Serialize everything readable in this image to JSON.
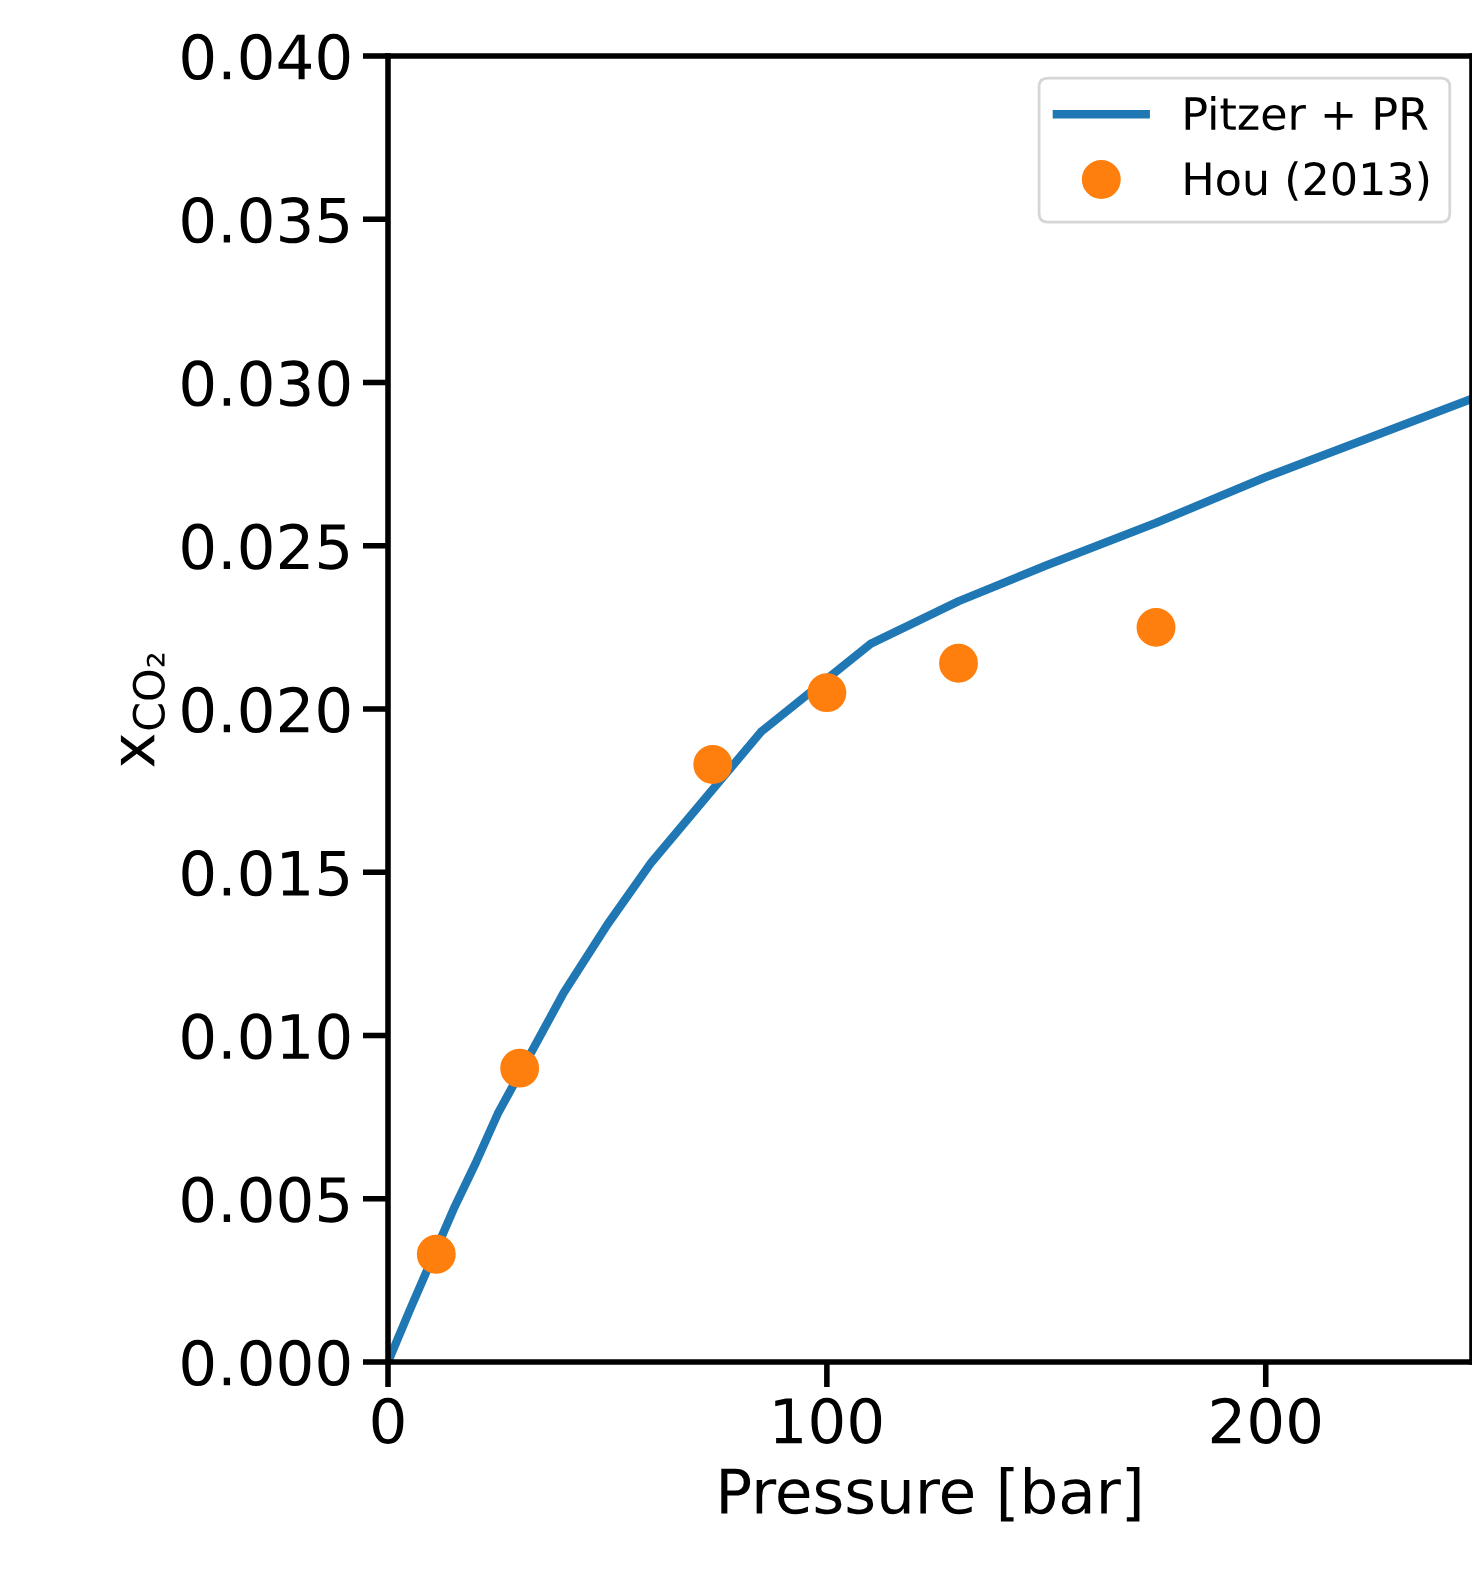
{
  "chart_data": {
    "type": "line",
    "xlabel": "Pressure [bar]",
    "ylabel": "x$_{CO₂}$",
    "xlim": [
      0,
      247
    ],
    "ylim": [
      0,
      0.04
    ],
    "xticks": [
      0,
      100,
      200
    ],
    "yticks": [
      {
        "value": 0,
        "label": "0.000"
      },
      {
        "value": 0.005,
        "label": "0.005"
      },
      {
        "value": 0.01,
        "label": "0.010"
      },
      {
        "value": 0.015,
        "label": "0.015"
      },
      {
        "value": 0.02,
        "label": "0.020"
      },
      {
        "value": 0.025,
        "label": "0.025"
      },
      {
        "value": 0.03,
        "label": "0.030"
      },
      {
        "value": 0.035,
        "label": "0.035"
      },
      {
        "value": 0.04,
        "label": "0.040"
      }
    ],
    "legend": "top right",
    "grid": false,
    "series": [
      {
        "name": "Pitzer + PR",
        "color": "#1f77b4",
        "marker": "none",
        "line_style": "solid",
        "x": [
          0,
          5,
          15,
          20,
          25,
          40,
          50,
          60,
          85,
          110,
          130,
          150,
          175,
          200,
          247
        ],
        "values": [
          0,
          0.0016,
          0.0047,
          0.0061,
          0.0076,
          0.0113,
          0.0134,
          0.0153,
          0.0193,
          0.022,
          0.0233,
          0.0244,
          0.0257,
          0.0271,
          0.0295
        ]
      },
      {
        "name": "Hou (2013)",
        "type": "scatter",
        "color": "#ff7f0e",
        "marker": "circle",
        "x": [
          11,
          30,
          74,
          100,
          130,
          175
        ],
        "values": [
          0.0033,
          0.009,
          0.0183,
          0.0205,
          0.0214,
          0.0225
        ]
      }
    ]
  }
}
